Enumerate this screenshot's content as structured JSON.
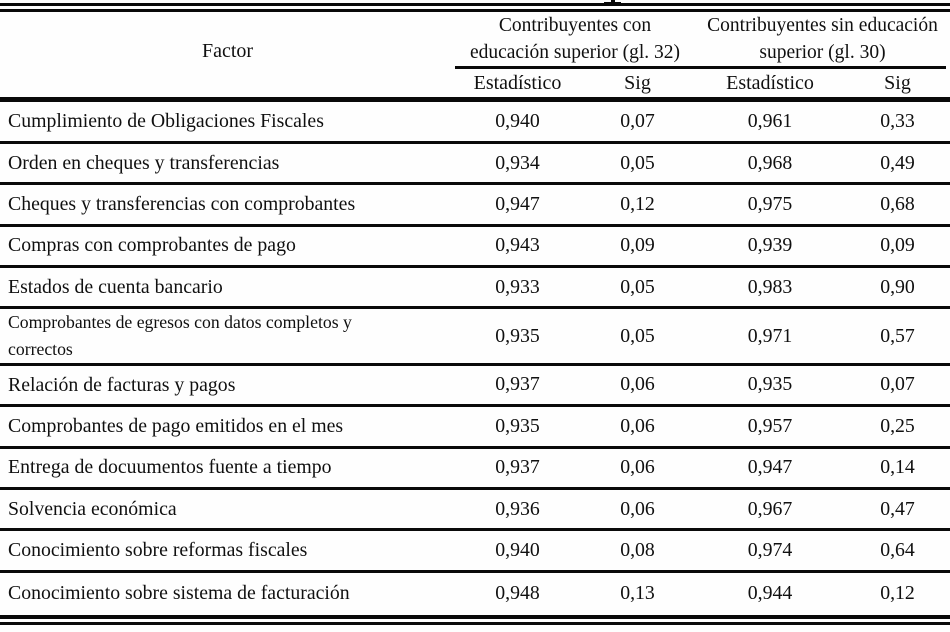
{
  "artifacts": {
    "cropped_title_descender_visible": true
  },
  "colors": {
    "background": "#fefefe",
    "line": "#090909",
    "text": "#101010"
  },
  "table": {
    "factor_header": "Factor",
    "groups": [
      {
        "line1": "Contribuyentes con",
        "line2": "educación superior (gl. 32)"
      },
      {
        "line1": "Contribuyentes sin educación",
        "line2": "superior (gl. 30)"
      }
    ],
    "sub_headers": [
      "Estadístico",
      "Sig",
      "Estadístico",
      "Sig"
    ],
    "rows": [
      {
        "factor": "Cumplimiento de Obligaciones Fiscales",
        "g1_estadistico": "0,940",
        "g1_sig": "0,07",
        "g2_estadistico": "0,961",
        "g2_sig": "0,33"
      },
      {
        "factor": "Orden en cheques y transferencias",
        "g1_estadistico": "0,934",
        "g1_sig": "0,05",
        "g2_estadistico": "0,968",
        "g2_sig": "0,49"
      },
      {
        "factor": "Cheques y transferencias con comprobantes",
        "g1_estadistico": "0,947",
        "g1_sig": "0,12",
        "g2_estadistico": "0,975",
        "g2_sig": "0,68"
      },
      {
        "factor": "Compras con comprobantes de pago",
        "g1_estadistico": "0,943",
        "g1_sig": "0,09",
        "g2_estadistico": "0,939",
        "g2_sig": "0,09"
      },
      {
        "factor": "Estados de cuenta bancario",
        "g1_estadistico": "0,933",
        "g1_sig": "0,05",
        "g2_estadistico": "0,983",
        "g2_sig": "0,90"
      },
      {
        "factor": "Comprobantes de egresos con datos completos y correctos",
        "g1_estadistico": "0,935",
        "g1_sig": "0,05",
        "g2_estadistico": "0,971",
        "g2_sig": "0,57"
      },
      {
        "factor": "Relación de facturas y pagos",
        "g1_estadistico": "0,937",
        "g1_sig": "0,06",
        "g2_estadistico": "0,935",
        "g2_sig": "0,07"
      },
      {
        "factor": "Comprobantes de pago emitidos en el mes",
        "g1_estadistico": "0,935",
        "g1_sig": "0,06",
        "g2_estadistico": "0,957",
        "g2_sig": "0,25"
      },
      {
        "factor": "Entrega de docuumentos fuente a tiempo",
        "g1_estadistico": "0,937",
        "g1_sig": "0,06",
        "g2_estadistico": "0,947",
        "g2_sig": "0,14"
      },
      {
        "factor": "Solvencia económica",
        "g1_estadistico": "0,936",
        "g1_sig": "0,06",
        "g2_estadistico": "0,967",
        "g2_sig": "0,47"
      },
      {
        "factor": "Conocimiento sobre reformas fiscales",
        "g1_estadistico": "0,940",
        "g1_sig": "0,08",
        "g2_estadistico": "0,974",
        "g2_sig": "0,64"
      },
      {
        "factor": "Conocimiento sobre sistema de facturación",
        "g1_estadistico": "0,948",
        "g1_sig": "0,13",
        "g2_estadistico": "0,944",
        "g2_sig": "0,12"
      }
    ]
  }
}
